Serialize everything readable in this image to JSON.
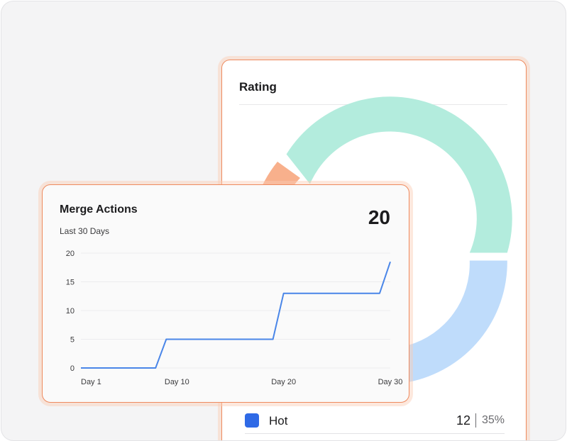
{
  "rating": {
    "title": "Rating",
    "legend": [
      {
        "label": "Hot",
        "count": "12",
        "percent": "35%",
        "color": "#2f6ae6"
      }
    ],
    "segment_colors": {
      "teal": "#b3ecdd",
      "blue": "#bfdcfb",
      "orange": "#f8b08c"
    }
  },
  "merge": {
    "title": "Merge Actions",
    "subtitle": "Last 30 Days",
    "total": "20",
    "chart_data": {
      "type": "line",
      "x": [
        1,
        2,
        3,
        4,
        5,
        6,
        7,
        8,
        9,
        10,
        11,
        12,
        13,
        14,
        15,
        16,
        17,
        18,
        19,
        20,
        21,
        22,
        23,
        24,
        25,
        26,
        27,
        28,
        29,
        30
      ],
      "x_tick_labels": [
        "Day 1",
        "Day 10",
        "Day 20",
        "Day 30"
      ],
      "x_tick_values": [
        1,
        10,
        20,
        30
      ],
      "y_ticks": [
        0,
        5,
        10,
        15,
        20
      ],
      "ylim": [
        0,
        20
      ],
      "series": [
        {
          "color": "#4a86e8",
          "values": [
            0,
            0,
            0,
            0,
            0,
            0,
            0,
            0,
            5,
            5,
            5,
            5,
            5,
            5,
            5,
            5,
            5,
            5,
            5,
            13,
            13,
            13,
            13,
            13,
            13,
            13,
            13,
            13,
            13,
            18.5
          ]
        }
      ],
      "grid": true
    }
  }
}
